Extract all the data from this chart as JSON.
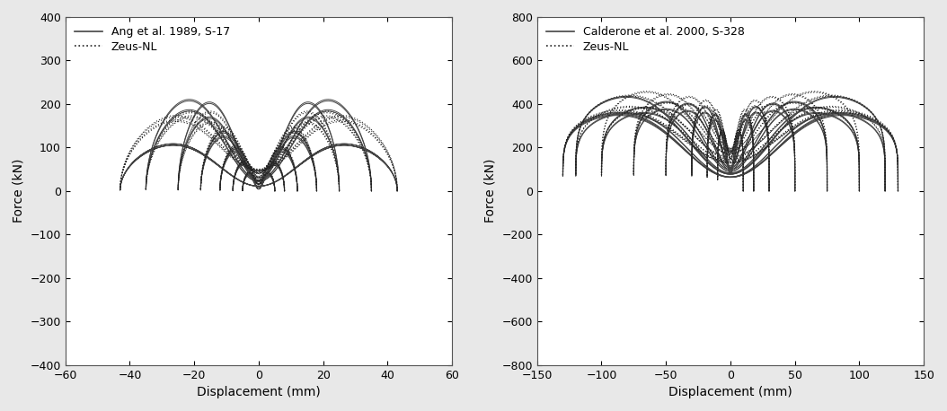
{
  "plot1": {
    "xlabel": "Displacement (mm)",
    "ylabel": "Force (kN)",
    "xlim": [
      -60,
      60
    ],
    "ylim": [
      -400,
      400
    ],
    "xticks": [
      -60,
      -40,
      -20,
      0,
      20,
      40,
      60
    ],
    "yticks": [
      -400,
      -300,
      -200,
      -100,
      0,
      100,
      200,
      300,
      400
    ],
    "legend_exp": "Ang et al. 1989, S-17",
    "legend_sim": "Zeus-NL",
    "exp_color": "#444444",
    "sim_color": "#222222"
  },
  "plot2": {
    "xlabel": "Displacement (mm)",
    "ylabel": "Force (kN)",
    "xlim": [
      -150,
      150
    ],
    "ylim": [
      -800,
      800
    ],
    "xticks": [
      -150,
      -100,
      -50,
      0,
      50,
      100,
      150
    ],
    "yticks": [
      -800,
      -600,
      -400,
      -200,
      0,
      200,
      400,
      600,
      800
    ],
    "legend_exp": "Calderone et al. 2000, S-328",
    "legend_sim": "Zeus-NL",
    "exp_color": "#444444",
    "sim_color": "#222222"
  },
  "fig_bg": "#e8e8e8",
  "axes_bg": "#ffffff",
  "linewidth_exp": 0.7,
  "linewidth_sim": 0.9
}
